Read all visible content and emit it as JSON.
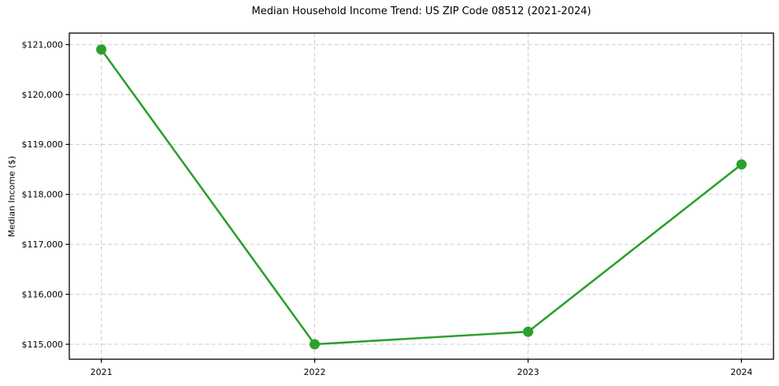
{
  "figure": {
    "title": "Median Household Income Trend: US ZIP Code 08512 (2021-2024)"
  },
  "chart_data": {
    "type": "line",
    "title": "Median Household Income Trend: US ZIP Code 08512 (2021-2024)",
    "xlabel": "",
    "ylabel": "Median Income ($)",
    "x": [
      2021,
      2022,
      2023,
      2024
    ],
    "x_tick_labels": [
      "2021",
      "2022",
      "2023",
      "2024"
    ],
    "series": [
      {
        "name": "Median Household Income",
        "values": [
          120900,
          115000,
          115250,
          118600
        ]
      }
    ],
    "y_ticks": [
      115000,
      116000,
      117000,
      118000,
      119000,
      120000,
      121000
    ],
    "y_tick_labels": [
      "$115,000",
      "$116,000",
      "$117,000",
      "$118,000",
      "$119,000",
      "$120,000",
      "$121,000"
    ],
    "xlim": [
      2020.85,
      2024.15
    ],
    "ylim": [
      114700,
      121230
    ],
    "grid": {
      "visible": true,
      "axis": "both",
      "style": "dashed",
      "color": "#cccccc"
    },
    "legend": {
      "visible": false
    },
    "style": {
      "line_color": "#2ca02c",
      "marker": "circle",
      "marker_color": "#2ca02c",
      "background_color": "#ffffff",
      "axis_color": "#000000",
      "tick_label_color": "#000000"
    }
  }
}
